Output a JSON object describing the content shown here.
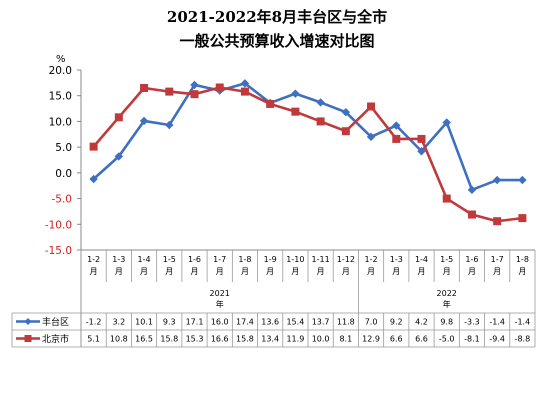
{
  "chart_data": {
    "type": "line",
    "title_line1": "2021-2022年8月丰台区与全市",
    "title_line2": "一般公共预算收入增速对比图",
    "ylabel": "%",
    "ylim": [
      -15,
      20
    ],
    "yticks": [
      "20.0",
      "15.0",
      "10.0",
      "5.0",
      "0.0",
      "-5.0",
      "-10.0",
      "-15.0"
    ],
    "categories": [
      "1-2月",
      "1-3月",
      "1-4月",
      "1-5月",
      "1-6月",
      "1-7月",
      "1-8月",
      "1-9月",
      "1-10月",
      "1-11月",
      "1-12月",
      "1-2月",
      "1-3月",
      "1-4月",
      "1-5月",
      "1-6月",
      "1-7月",
      "1-8月"
    ],
    "year_groups": [
      {
        "label": "2021年",
        "count": 11
      },
      {
        "label": "2022年",
        "count": 7
      }
    ],
    "series": [
      {
        "name": "丰台区",
        "color": "#3f6fc0",
        "marker": "diamond",
        "values": [
          -1.2,
          3.2,
          10.1,
          9.3,
          17.1,
          16.0,
          17.4,
          13.6,
          15.4,
          13.7,
          11.8,
          7.0,
          9.2,
          4.2,
          9.8,
          -3.3,
          -1.4,
          -1.4
        ],
        "labels": [
          "-1.2",
          "3.2",
          "10.1",
          "9.3",
          "17.1",
          "16.0",
          "17.4",
          "13.6",
          "15.4",
          "13.7",
          "11.8",
          "7.0",
          "9.2",
          "4.2",
          "9.8",
          "-3.3",
          "-1.4",
          "-1.4"
        ]
      },
      {
        "name": "北京市",
        "color": "#c0393b",
        "marker": "square",
        "values": [
          5.1,
          10.8,
          16.5,
          15.8,
          15.3,
          16.6,
          15.8,
          13.4,
          11.9,
          10.0,
          8.1,
          12.9,
          6.6,
          6.6,
          -5.0,
          -8.1,
          -9.4,
          -8.8
        ],
        "labels": [
          "5.1",
          "10.8",
          "16.5",
          "15.8",
          "15.3",
          "16.6",
          "15.8",
          "13.4",
          "11.9",
          "10.0",
          "8.1",
          "12.9",
          "6.6",
          "6.6",
          "-5.0",
          "-8.1",
          "-9.4",
          "-8.8"
        ]
      }
    ],
    "grid": false,
    "legend": "data-table"
  }
}
